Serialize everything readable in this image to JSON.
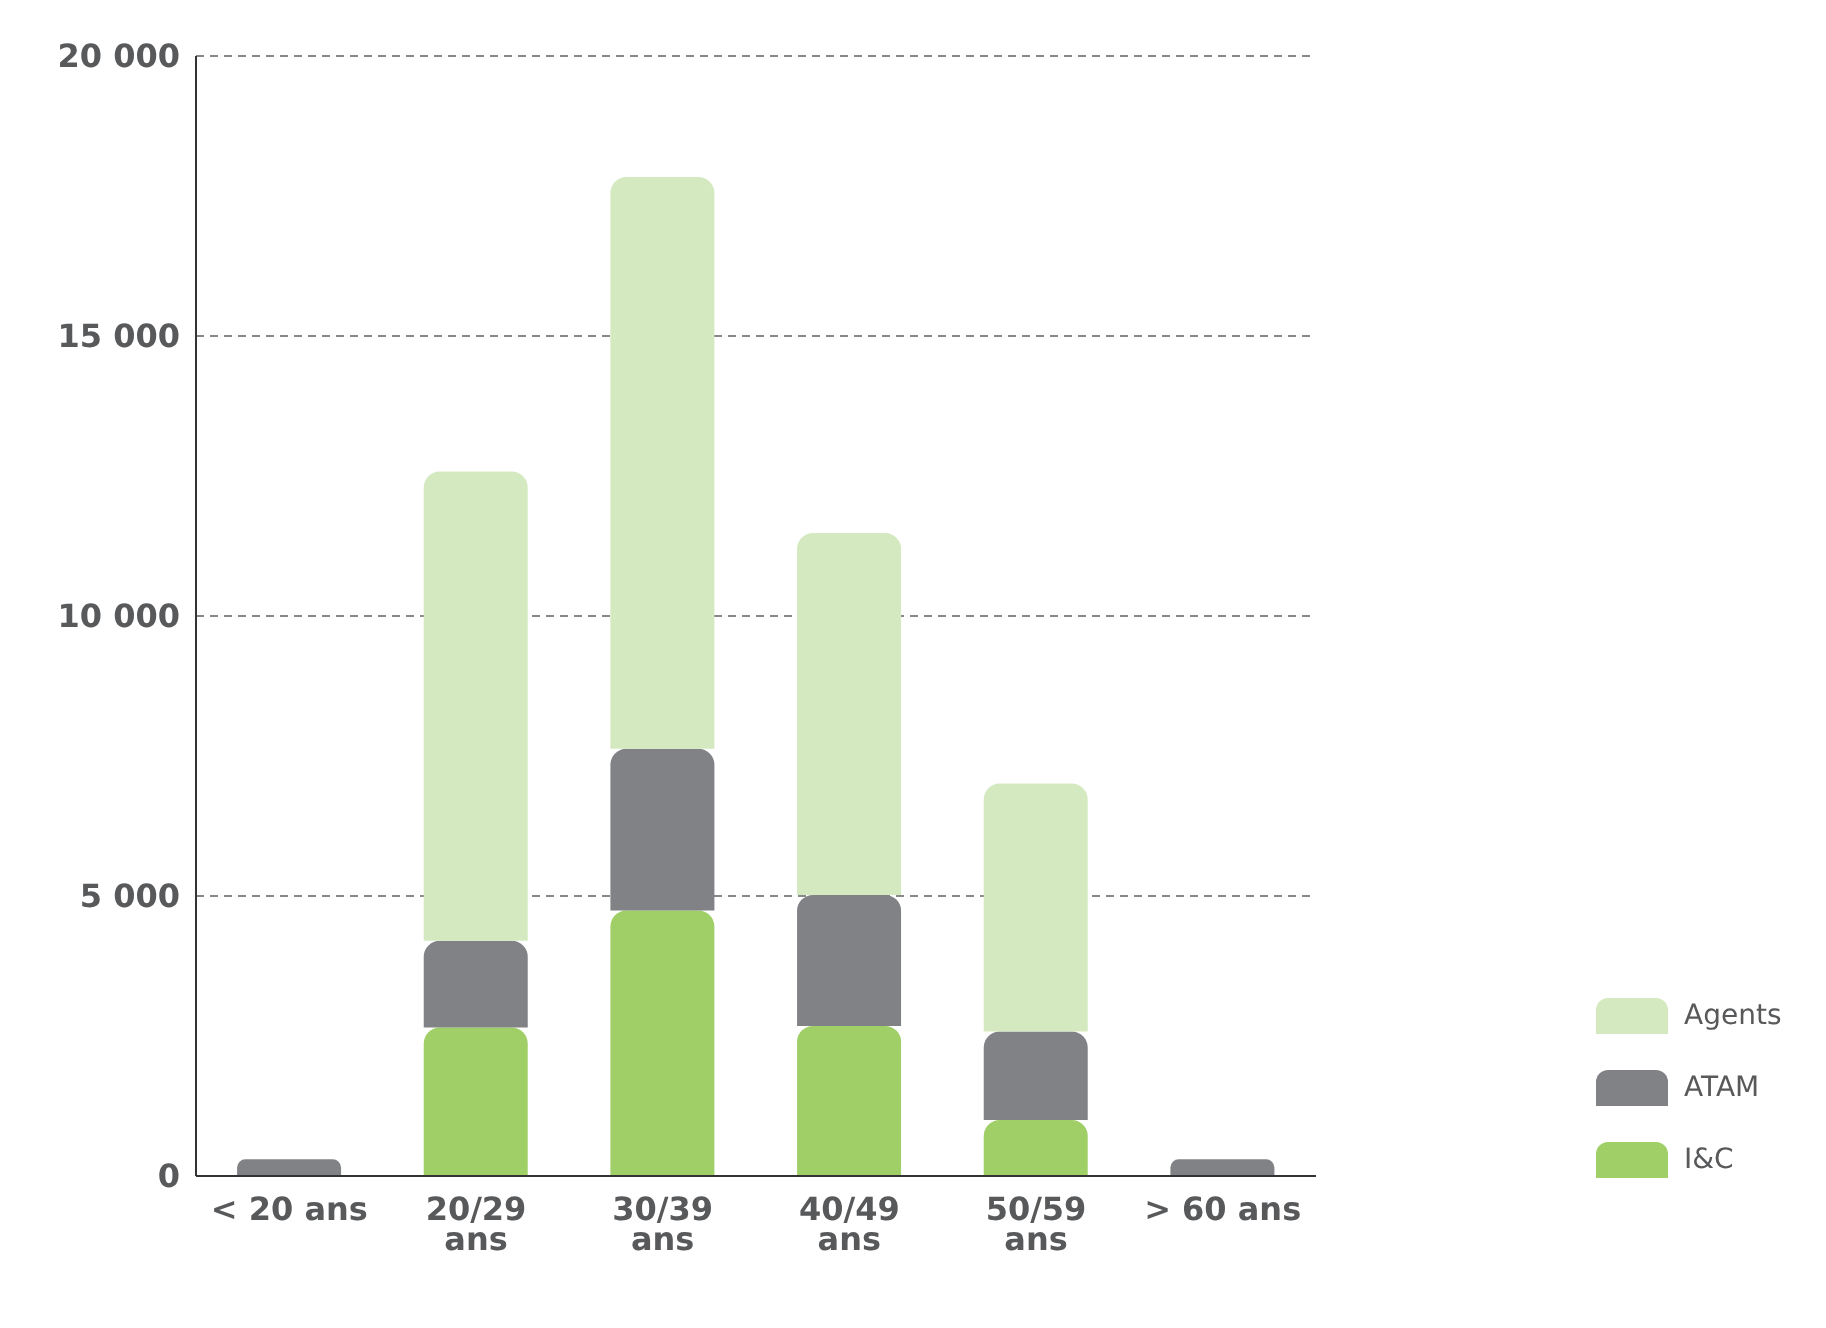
{
  "chart_data": {
    "type": "bar",
    "stacked": true,
    "categories": [
      "< 20 ans",
      "20/29 ans",
      "30/39 ans",
      "40/49 ans",
      "50/59 ans",
      "> 60 ans"
    ],
    "series": [
      {
        "name": "I&C",
        "color": "#a0cf67",
        "values": [
          0,
          2650,
          4740,
          2680,
          1000,
          0
        ]
      },
      {
        "name": "ATAM",
        "color": "#808285",
        "values": [
          300,
          1550,
          2890,
          2340,
          1580,
          300
        ]
      },
      {
        "name": "Agents",
        "color": "#d5e9c0",
        "values": [
          0,
          8380,
          10210,
          6460,
          4430,
          0
        ]
      }
    ],
    "ylim": [
      0,
      20000
    ],
    "yticks": [
      0,
      {
        "value": 5000,
        "label": "5 000"
      },
      {
        "value": 10000,
        "label": "10 000"
      },
      {
        "value": 15000,
        "label": "15 000"
      },
      {
        "value": 20000,
        "label": "20 000"
      }
    ],
    "grid": "y",
    "legend": "bottom right"
  }
}
